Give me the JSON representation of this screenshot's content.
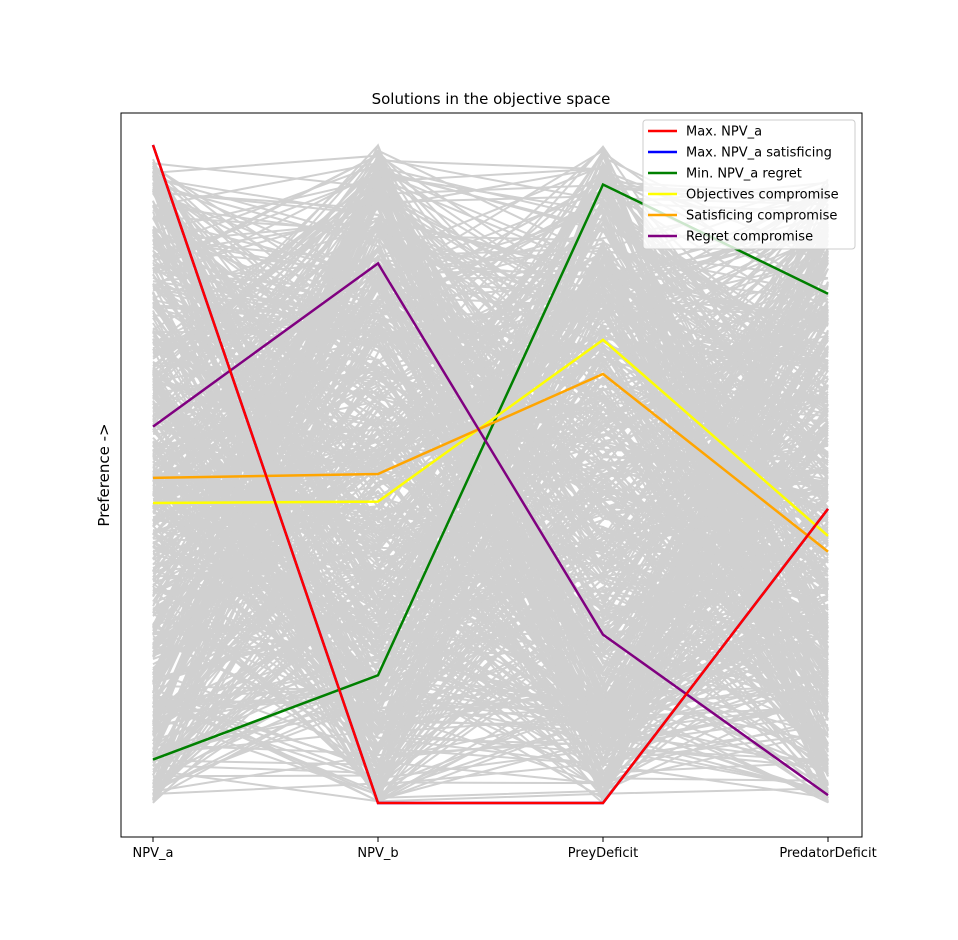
{
  "chart_data": {
    "type": "line",
    "subtype": "parallel-coordinates",
    "title": "Solutions in the objective space",
    "ylabel": "Preference ->",
    "xlabel": "",
    "categories": [
      "NPV_a",
      "NPV_b",
      "PreyDeficit",
      "PredatorDeficit"
    ],
    "ylim": [
      0,
      1
    ],
    "yticks_visible": false,
    "grid": false,
    "legend_position": "top-right",
    "background_solutions": {
      "color": "#d0d0d0",
      "description_count": 600,
      "envelope_top": [
        0.98,
        1.0,
        1.0,
        0.95
      ],
      "envelope_bottom": [
        0.0,
        0.0,
        0.0,
        0.0
      ]
    },
    "series": [
      {
        "name": "Max. NPV_a",
        "color": "#ff0000",
        "values": [
          1.0,
          0.0,
          0.0,
          0.447
        ]
      },
      {
        "name": "Max. NPV_a satisficing",
        "color": "#0000ff",
        "values": [
          1.0,
          0.0,
          0.0,
          0.447
        ]
      },
      {
        "name": "Min. NPV_a regret",
        "color": "#008000",
        "values": [
          0.066,
          0.194,
          0.94,
          0.774
        ]
      },
      {
        "name": "Objectives compromise",
        "color": "#ffff00",
        "values": [
          0.456,
          0.458,
          0.704,
          0.406
        ]
      },
      {
        "name": "Satisficing compromise",
        "color": "#ffa500",
        "values": [
          0.494,
          0.5,
          0.652,
          0.382
        ]
      },
      {
        "name": "Regret compromise",
        "color": "#800080",
        "values": [
          0.572,
          0.82,
          0.256,
          0.012
        ]
      }
    ]
  }
}
